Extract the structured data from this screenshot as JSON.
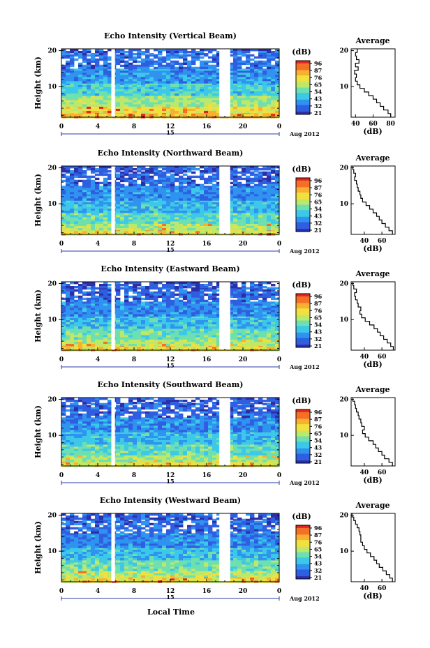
{
  "common": {
    "x_ticks": [
      "0",
      "4",
      "8",
      "12",
      "16",
      "20",
      "0"
    ],
    "date_label": "Aug 2012",
    "day_label": "15",
    "y_ticks": [
      "20",
      "10"
    ],
    "ylabel": "Height (km)",
    "colorbar_unit": "(dB)",
    "colorbar_levels": [
      "96",
      "87",
      "76",
      "65",
      "54",
      "43",
      "32",
      "21"
    ],
    "avg_title": "Average",
    "avg_unit": "(dB)",
    "xlabel_bottom": "Local Time",
    "colormap": [
      "#2b2fa8",
      "#2f5fe0",
      "#2f93f0",
      "#3cc8e8",
      "#6ee0b0",
      "#bde86a",
      "#f0e040",
      "#f9b030",
      "#f37026",
      "#e0261c"
    ],
    "gap_color": "#ffffff"
  },
  "chart_data": [
    {
      "type": "heatmap",
      "title": "Echo Intensity (Vertical Beam)",
      "x_range_hours": [
        0,
        24
      ],
      "y_range_km": [
        1.5,
        20.5
      ],
      "data_gaps_hours": [
        [
          5.5,
          5.9
        ],
        [
          17.4,
          18.6
        ]
      ],
      "layers": [
        {
          "km_from": 1.5,
          "km_to": 3,
          "db": 76
        },
        {
          "km_from": 3,
          "km_to": 5,
          "db": 70
        },
        {
          "km_from": 5,
          "km_to": 8,
          "db": 60
        },
        {
          "km_from": 8,
          "km_to": 11,
          "db": 48
        },
        {
          "km_from": 11,
          "km_to": 15,
          "db": 38
        },
        {
          "km_from": 15,
          "km_to": 19,
          "db": 32
        },
        {
          "km_from": 19,
          "km_to": 20.5,
          "db": 30
        }
      ],
      "average": {
        "x_ticks": [
          "40",
          "60",
          "80"
        ],
        "xlim": [
          35,
          85
        ],
        "ylim": [
          1.5,
          20.5
        ],
        "height_km": [
          2,
          3,
          4,
          5,
          6,
          7,
          8,
          9,
          10,
          11,
          12,
          13,
          14,
          15,
          16,
          17,
          18,
          19,
          20
        ],
        "db": [
          80,
          77,
          72,
          68,
          64,
          60,
          55,
          50,
          45,
          42,
          40,
          41,
          39,
          43,
          40,
          44,
          41,
          40,
          42
        ]
      }
    },
    {
      "type": "heatmap",
      "title": "Echo Intensity (Northward Beam)",
      "x_range_hours": [
        0,
        24
      ],
      "y_range_km": [
        1.5,
        20.5
      ],
      "data_gaps_hours": [
        [
          5.5,
          5.9
        ],
        [
          17.4,
          18.6
        ]
      ],
      "layers": [
        {
          "km_from": 1.5,
          "km_to": 3,
          "db": 68
        },
        {
          "km_from": 3,
          "km_to": 5,
          "db": 60
        },
        {
          "km_from": 5,
          "km_to": 8,
          "db": 52
        },
        {
          "km_from": 8,
          "km_to": 11,
          "db": 44
        },
        {
          "km_from": 11,
          "km_to": 15,
          "db": 36
        },
        {
          "km_from": 15,
          "km_to": 19,
          "db": 30
        },
        {
          "km_from": 19,
          "km_to": 20.5,
          "db": 28
        }
      ],
      "average": {
        "x_ticks": [
          "40",
          "60"
        ],
        "xlim": [
          25,
          75
        ],
        "ylim": [
          1.5,
          20.5
        ],
        "height_km": [
          2,
          3,
          4,
          5,
          6,
          7,
          8,
          9,
          10,
          11,
          12,
          13,
          14,
          15,
          16,
          17,
          18,
          19,
          20
        ],
        "db": [
          72,
          68,
          64,
          60,
          57,
          54,
          50,
          46,
          42,
          38,
          36,
          35,
          33,
          32,
          31,
          29,
          30,
          28,
          27
        ]
      }
    },
    {
      "type": "heatmap",
      "title": "Echo Intensity (Eastward Beam)",
      "x_range_hours": [
        0,
        24
      ],
      "y_range_km": [
        1.5,
        20.5
      ],
      "data_gaps_hours": [
        [
          5.5,
          5.9
        ],
        [
          17.4,
          18.6
        ]
      ],
      "layers": [
        {
          "km_from": 1.5,
          "km_to": 3,
          "db": 70
        },
        {
          "km_from": 3,
          "km_to": 5,
          "db": 62
        },
        {
          "km_from": 5,
          "km_to": 8,
          "db": 54
        },
        {
          "km_from": 8,
          "km_to": 11,
          "db": 45
        },
        {
          "km_from": 11,
          "km_to": 15,
          "db": 36
        },
        {
          "km_from": 15,
          "km_to": 19,
          "db": 30
        },
        {
          "km_from": 19,
          "km_to": 20.5,
          "db": 28
        }
      ],
      "average": {
        "x_ticks": [
          "40",
          "60"
        ],
        "xlim": [
          25,
          75
        ],
        "ylim": [
          1.5,
          20.5
        ],
        "height_km": [
          2,
          3,
          4,
          5,
          6,
          7,
          8,
          9,
          10,
          11,
          12,
          13,
          14,
          15,
          16,
          17,
          18,
          19,
          20
        ],
        "db": [
          73,
          70,
          66,
          62,
          58,
          55,
          51,
          46,
          41,
          37,
          35,
          36,
          33,
          32,
          30,
          29,
          31,
          28,
          27
        ]
      }
    },
    {
      "type": "heatmap",
      "title": "Echo Intensity (Southward Beam)",
      "x_range_hours": [
        0,
        24
      ],
      "y_range_km": [
        1.5,
        20.5
      ],
      "data_gaps_hours": [
        [
          5.5,
          5.9
        ],
        [
          17.4,
          18.6
        ]
      ],
      "layers": [
        {
          "km_from": 1.5,
          "km_to": 3,
          "db": 68
        },
        {
          "km_from": 3,
          "km_to": 5,
          "db": 60
        },
        {
          "km_from": 5,
          "km_to": 8,
          "db": 52
        },
        {
          "km_from": 8,
          "km_to": 11,
          "db": 44
        },
        {
          "km_from": 11,
          "km_to": 15,
          "db": 36
        },
        {
          "km_from": 15,
          "km_to": 19,
          "db": 30
        },
        {
          "km_from": 19,
          "km_to": 20.5,
          "db": 28
        }
      ],
      "average": {
        "x_ticks": [
          "40",
          "60"
        ],
        "xlim": [
          25,
          75
        ],
        "ylim": [
          1.5,
          20.5
        ],
        "height_km": [
          2,
          3,
          4,
          5,
          6,
          7,
          8,
          9,
          10,
          11,
          12,
          13,
          14,
          15,
          16,
          17,
          18,
          19,
          20
        ],
        "db": [
          72,
          68,
          63,
          60,
          56,
          53,
          50,
          45,
          41,
          38,
          40,
          37,
          36,
          34,
          33,
          31,
          30,
          29,
          27
        ]
      }
    },
    {
      "type": "heatmap",
      "title": "Echo Intensity (Westward Beam)",
      "x_range_hours": [
        0,
        24
      ],
      "y_range_km": [
        1.5,
        20.5
      ],
      "data_gaps_hours": [
        [
          5.5,
          5.9
        ],
        [
          17.4,
          18.6
        ]
      ],
      "layers": [
        {
          "km_from": 1.5,
          "km_to": 3,
          "db": 70
        },
        {
          "km_from": 3,
          "km_to": 5,
          "db": 62
        },
        {
          "km_from": 5,
          "km_to": 8,
          "db": 54
        },
        {
          "km_from": 8,
          "km_to": 11,
          "db": 45
        },
        {
          "km_from": 11,
          "km_to": 15,
          "db": 36
        },
        {
          "km_from": 15,
          "km_to": 19,
          "db": 31
        },
        {
          "km_from": 19,
          "km_to": 20.5,
          "db": 28
        }
      ],
      "average": {
        "x_ticks": [
          "40",
          "60"
        ],
        "xlim": [
          25,
          75
        ],
        "ylim": [
          1.5,
          20.5
        ],
        "height_km": [
          2,
          3,
          4,
          5,
          6,
          7,
          8,
          9,
          10,
          11,
          12,
          13,
          14,
          15,
          16,
          17,
          18,
          19,
          20
        ],
        "db": [
          72,
          69,
          65,
          61,
          57,
          54,
          51,
          47,
          43,
          40,
          38,
          36,
          36,
          35,
          34,
          32,
          30,
          28,
          26
        ]
      }
    }
  ]
}
